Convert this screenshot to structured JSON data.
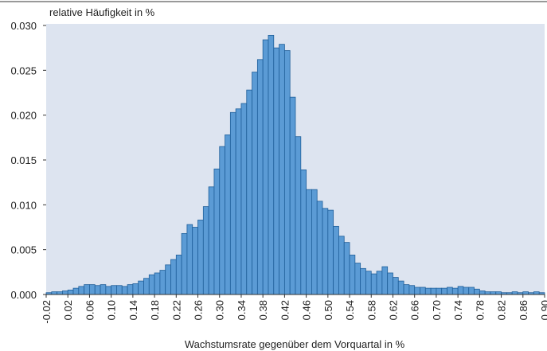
{
  "chart_data": {
    "type": "histogram",
    "y_label": "relative Häufigkeit in %",
    "x_label": "Wachstumsrate gegenüber dem Vorquartal in %",
    "color": "#5b9bd5",
    "edge_color": "#1f5f9a",
    "background": "#dde4f0",
    "bins": [
      -0.02,
      -0.01,
      0.0,
      0.01,
      0.02,
      0.03,
      0.04,
      0.05,
      0.06,
      0.07,
      0.08,
      0.09,
      0.1,
      0.11,
      0.12,
      0.13,
      0.14,
      0.15,
      0.16,
      0.17,
      0.18,
      0.19,
      0.2,
      0.21,
      0.22,
      0.23,
      0.24,
      0.25,
      0.26,
      0.27,
      0.28,
      0.29,
      0.3,
      0.31,
      0.32,
      0.33,
      0.34,
      0.35,
      0.36,
      0.37,
      0.38,
      0.39,
      0.4,
      0.41,
      0.42,
      0.43,
      0.44,
      0.45,
      0.46,
      0.47,
      0.48,
      0.49,
      0.5,
      0.51,
      0.52,
      0.53,
      0.54,
      0.55,
      0.56,
      0.57,
      0.58,
      0.59,
      0.6,
      0.61,
      0.62,
      0.63,
      0.64,
      0.65,
      0.66,
      0.67,
      0.68,
      0.69,
      0.7,
      0.71,
      0.72,
      0.73,
      0.74,
      0.75,
      0.76,
      0.77,
      0.78,
      0.79,
      0.8,
      0.81,
      0.82,
      0.83,
      0.84,
      0.85,
      0.86,
      0.87,
      0.88,
      0.89,
      0.9
    ],
    "values": [
      0.0002,
      0.0003,
      0.0003,
      0.0004,
      0.0005,
      0.0007,
      0.0009,
      0.0011,
      0.0011,
      0.001,
      0.0011,
      0.0009,
      0.001,
      0.001,
      0.0009,
      0.0011,
      0.0012,
      0.0015,
      0.0018,
      0.0022,
      0.0024,
      0.0027,
      0.0033,
      0.0039,
      0.0044,
      0.0068,
      0.0078,
      0.0075,
      0.0083,
      0.0098,
      0.012,
      0.014,
      0.0165,
      0.0178,
      0.0203,
      0.0207,
      0.0213,
      0.0228,
      0.0248,
      0.0262,
      0.0284,
      0.0289,
      0.0275,
      0.0279,
      0.0272,
      0.022,
      0.0176,
      0.0139,
      0.0117,
      0.0117,
      0.0104,
      0.0096,
      0.0094,
      0.0076,
      0.0065,
      0.0058,
      0.0044,
      0.0035,
      0.0029,
      0.0026,
      0.0023,
      0.0026,
      0.0031,
      0.0024,
      0.0019,
      0.0015,
      0.0011,
      0.001,
      0.0008,
      0.0008,
      0.0007,
      0.0007,
      0.0007,
      0.0007,
      0.0008,
      0.0007,
      0.0009,
      0.0008,
      0.0008,
      0.0006,
      0.0004,
      0.0003,
      0.0003,
      0.0003,
      0.0002,
      0.0002,
      0.0003,
      0.0002,
      0.0003,
      0.0002,
      0.0003,
      0.0002
    ],
    "xlim": [
      -0.02,
      0.9
    ],
    "xticks": [
      -0.02,
      0.02,
      0.06,
      {
        "value": 0.1,
        "label": "0.10"
      },
      0.14,
      0.18,
      0.22,
      0.26,
      {
        "value": 0.3,
        "label": "0.30"
      },
      0.34,
      0.38,
      0.42,
      0.46,
      {
        "value": 0.5,
        "label": "0.50"
      },
      0.54,
      0.58,
      0.62,
      0.66,
      {
        "value": 0.7,
        "label": "0.70"
      },
      0.74,
      0.78,
      0.82,
      0.86,
      {
        "value": 0.9,
        "label": "0.90"
      }
    ],
    "ylim": [
      0,
      0.03
    ],
    "yticks": [
      {
        "value": 0,
        "label": "0.000"
      },
      0.005,
      {
        "value": 0.01,
        "label": "0.010"
      },
      0.015,
      {
        "value": 0.02,
        "label": "0.020"
      },
      0.025,
      {
        "value": 0.03,
        "label": "0.030"
      }
    ]
  }
}
